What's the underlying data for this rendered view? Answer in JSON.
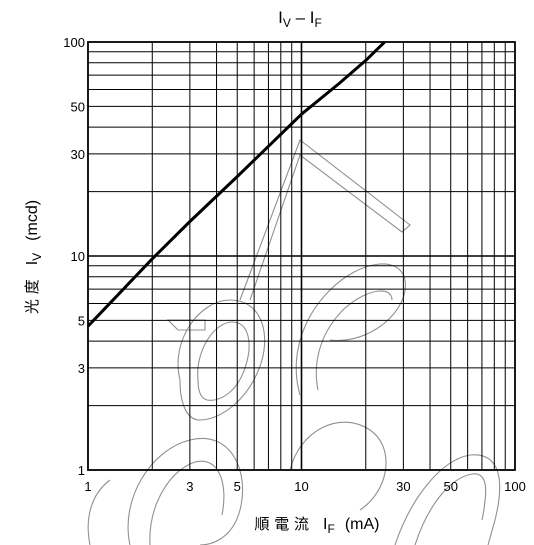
{
  "chart_data": {
    "type": "line",
    "title": "I_V – I_F",
    "title_parts": {
      "a": "I",
      "a_sub": "V",
      "dash": " – ",
      "b": "I",
      "b_sub": "F"
    },
    "xlabel": "順 電 流 I_F (mA)",
    "xlabel_parts": {
      "cjk": "順 電 流",
      "sym": "I",
      "sub": "F",
      "unit": "(mA)"
    },
    "ylabel": "光 度 I_V (mcd)",
    "ylabel_parts": {
      "cjk": "光 度",
      "sym": "I",
      "sub": "V",
      "unit": "(mcd)"
    },
    "x_scale": "log",
    "y_scale": "log",
    "xlim": [
      1,
      100
    ],
    "ylim": [
      1,
      100
    ],
    "x_tick_labels": [
      "1",
      "3",
      "5",
      "10",
      "30",
      "50",
      "100"
    ],
    "y_tick_labels": [
      "1",
      "3",
      "5",
      "10",
      "30",
      "50",
      "100"
    ],
    "grid": true,
    "series": [
      {
        "x": [
          1,
          2,
          3,
          5,
          10,
          15,
          20,
          24.5
        ],
        "y": [
          4.7,
          9.7,
          14.5,
          23.5,
          46,
          64,
          82,
          100
        ]
      }
    ],
    "watermark": "ordecen"
  }
}
